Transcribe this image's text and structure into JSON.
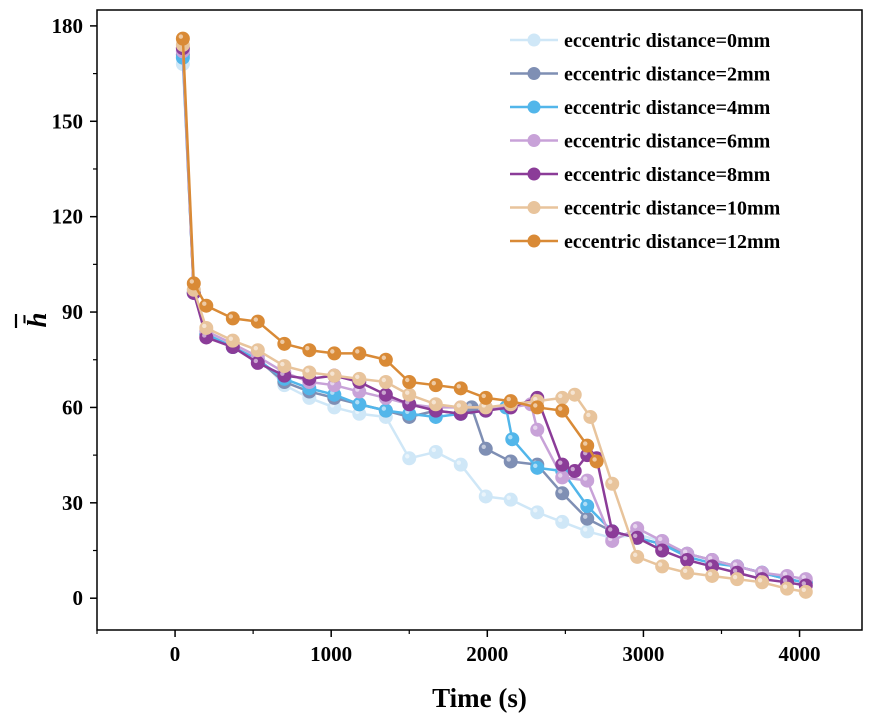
{
  "chart_data": {
    "type": "line",
    "title": "",
    "xlabel": "Time (s)",
    "ylabel": "h̄",
    "xlim": [
      -500,
      4400
    ],
    "ylim": [
      -10,
      185
    ],
    "xticks": [
      0,
      1000,
      2000,
      3000,
      4000
    ],
    "yticks": [
      0,
      30,
      60,
      90,
      120,
      150,
      180
    ],
    "grid": false,
    "legend_position": "top-right",
    "series": [
      {
        "name": "eccentric distance=0mm",
        "color": "#cfe7f7",
        "x": [
          50,
          120,
          200,
          370,
          530,
          700,
          860,
          1020,
          1180,
          1350,
          1500,
          1670,
          1830,
          1990,
          2150,
          2320,
          2480,
          2640,
          2800,
          2960,
          3120,
          3280,
          3440,
          3600,
          3760,
          3920,
          4040
        ],
        "y": [
          168,
          97,
          84,
          79,
          76,
          67,
          63,
          60,
          58,
          57,
          44,
          46,
          42,
          32,
          31,
          27,
          24,
          21,
          19,
          20,
          18,
          14,
          12,
          10,
          8,
          6,
          5
        ]
      },
      {
        "name": "eccentric distance=2mm",
        "color": "#7f8fb4",
        "x": [
          50,
          120,
          200,
          370,
          530,
          700,
          860,
          1020,
          1180,
          1350,
          1500,
          1670,
          1830,
          1900,
          1990,
          2150,
          2320,
          2480,
          2640,
          2800,
          2960,
          3120,
          3280,
          3440,
          3600,
          3760,
          3920,
          4040
        ],
        "y": [
          171,
          96,
          83,
          79,
          75,
          68,
          65,
          63,
          61,
          59,
          57,
          59,
          58,
          60,
          47,
          43,
          42,
          33,
          25,
          21,
          19,
          17,
          14,
          12,
          10,
          8,
          6,
          5
        ]
      },
      {
        "name": "eccentric distance=4mm",
        "color": "#52b6ea",
        "x": [
          50,
          120,
          200,
          370,
          530,
          700,
          860,
          1020,
          1180,
          1350,
          1500,
          1670,
          1830,
          1990,
          2120,
          2160,
          2320,
          2480,
          2640,
          2800,
          2960,
          3120,
          3280,
          3440,
          3600,
          3760,
          3920,
          4040
        ],
        "y": [
          170,
          96,
          83,
          79,
          75,
          69,
          66,
          64,
          61,
          59,
          58,
          57,
          58,
          59,
          60,
          50,
          41,
          40,
          29,
          21,
          19,
          17,
          13,
          11,
          10,
          8,
          6,
          5
        ]
      },
      {
        "name": "eccentric distance=6mm",
        "color": "#c8a2d8",
        "x": [
          50,
          120,
          200,
          370,
          530,
          700,
          860,
          1020,
          1180,
          1350,
          1500,
          1670,
          1830,
          1990,
          2150,
          2280,
          2320,
          2480,
          2640,
          2800,
          2960,
          3120,
          3280,
          3440,
          3600,
          3760,
          3920,
          4040
        ],
        "y": [
          172,
          96,
          84,
          80,
          76,
          71,
          68,
          67,
          65,
          63,
          61,
          60,
          60,
          60,
          60,
          61,
          53,
          38,
          37,
          18,
          22,
          18,
          14,
          12,
          10,
          8,
          7,
          6
        ]
      },
      {
        "name": "eccentric distance=8mm",
        "color": "#8b3c98",
        "x": [
          50,
          120,
          200,
          370,
          530,
          700,
          860,
          1020,
          1180,
          1350,
          1500,
          1670,
          1830,
          1990,
          2150,
          2320,
          2480,
          2560,
          2640,
          2700,
          2800,
          2960,
          3120,
          3280,
          3440,
          3600,
          3760,
          3920,
          4040
        ],
        "y": [
          173,
          96,
          82,
          79,
          74,
          70,
          69,
          70,
          68,
          64,
          61,
          59,
          58,
          59,
          60,
          63,
          42,
          40,
          45,
          44,
          21,
          19,
          15,
          12,
          10,
          8,
          6,
          5,
          4
        ]
      },
      {
        "name": "eccentric distance=10mm",
        "color": "#e8c49c",
        "x": [
          50,
          120,
          200,
          370,
          530,
          700,
          860,
          1020,
          1180,
          1350,
          1500,
          1670,
          1830,
          1990,
          2150,
          2320,
          2480,
          2560,
          2660,
          2800,
          2960,
          3120,
          3280,
          3440,
          3600,
          3760,
          3920,
          4040
        ],
        "y": [
          174,
          97,
          85,
          81,
          78,
          73,
          71,
          70,
          69,
          68,
          64,
          61,
          60,
          60,
          61,
          62,
          63,
          64,
          57,
          36,
          13,
          10,
          8,
          7,
          6,
          5,
          3,
          2
        ]
      },
      {
        "name": "eccentric distance=12mm",
        "color": "#d98a36",
        "x": [
          50,
          120,
          200,
          370,
          530,
          700,
          860,
          1020,
          1180,
          1350,
          1500,
          1670,
          1830,
          1990,
          2150,
          2320,
          2480,
          2640,
          2700
        ],
        "y": [
          176,
          99,
          92,
          88,
          87,
          80,
          78,
          77,
          77,
          75,
          68,
          67,
          66,
          63,
          62,
          60,
          59,
          48,
          43
        ]
      }
    ]
  }
}
